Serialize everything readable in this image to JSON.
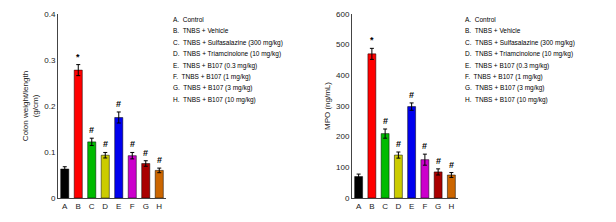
{
  "chart_data": [
    {
      "type": "bar",
      "ylabel": "Colon weight/length\n(g/cm)",
      "categories": [
        "A",
        "B",
        "C",
        "D",
        "E",
        "F",
        "G",
        "H"
      ],
      "values": [
        0.063,
        0.278,
        0.122,
        0.093,
        0.175,
        0.092,
        0.075,
        0.06
      ],
      "errors": [
        0.005,
        0.012,
        0.008,
        0.006,
        0.012,
        0.007,
        0.006,
        0.005
      ],
      "colors": [
        "#000000",
        "#ff0000",
        "#00bb00",
        "#cccc00",
        "#0000ee",
        "#cc00cc",
        "#aa0000",
        "#cc6600"
      ],
      "ylim": [
        0,
        0.4
      ],
      "yticks": [
        0.0,
        0.1,
        0.2,
        0.3,
        0.4
      ],
      "grid": false,
      "annotations": [
        {
          "x": "B",
          "text": "*"
        },
        {
          "x": "C",
          "text": "#"
        },
        {
          "x": "D",
          "text": "#"
        },
        {
          "x": "E",
          "text": "#"
        },
        {
          "x": "F",
          "text": "#"
        },
        {
          "x": "G",
          "text": "#"
        },
        {
          "x": "H",
          "text": "#"
        },
        {
          "text": "A.  Control"
        },
        {
          "text": "B.  TNBS + Vehicle"
        },
        {
          "text": "C.  TNBS + Sulfasalazine (300 mg/kg)"
        },
        {
          "text": "D.  TNBS + Triamcinolone (10 mg/kg)"
        },
        {
          "text": "E.  TNBS + B107 (0.3 mg/kg)"
        },
        {
          "text": "F.  TNBS + B107 (1 mg/kg)"
        },
        {
          "text": "G.  TNBS + B107 (3 mg/kg)"
        },
        {
          "text": "H.  TNBS + B107 (10 mg/kg)"
        }
      ]
    },
    {
      "type": "bar",
      "ylabel": "MPO (ng/mL)",
      "categories": [
        "A",
        "B",
        "C",
        "D",
        "E",
        "F",
        "G",
        "H"
      ],
      "values": [
        70,
        470,
        210,
        140,
        298,
        125,
        85,
        75
      ],
      "errors": [
        8,
        18,
        15,
        10,
        12,
        18,
        10,
        8
      ],
      "colors": [
        "#000000",
        "#ff0000",
        "#00bb00",
        "#cccc00",
        "#0000ee",
        "#cc00cc",
        "#aa0000",
        "#cc6600"
      ],
      "ylim": [
        0,
        600
      ],
      "yticks": [
        0,
        100,
        200,
        300,
        400,
        500,
        600
      ],
      "grid": false,
      "annotations": [
        {
          "x": "B",
          "text": "*"
        },
        {
          "x": "C",
          "text": "#"
        },
        {
          "x": "D",
          "text": "#"
        },
        {
          "x": "E",
          "text": "#"
        },
        {
          "x": "F",
          "text": "#"
        },
        {
          "x": "G",
          "text": "#"
        },
        {
          "x": "H",
          "text": "#"
        },
        {
          "text": "A.  Control"
        },
        {
          "text": "B.  TNBS + Vehicle"
        },
        {
          "text": "C.  TNBS + Sulfasalazine (300 mg/kg)"
        },
        {
          "text": "D.  TNBS + Triamcinolone (10 mg/kg)"
        },
        {
          "text": "E.  TNBS + B107 (0.3 mg/kg)"
        },
        {
          "text": "F.  TNBS + B107 (1 mg/kg)"
        },
        {
          "text": "G.  TNBS + B107 (3 mg/kg)"
        },
        {
          "text": "H.  TNBS + B107 (10 mg/kg)"
        }
      ]
    }
  ]
}
